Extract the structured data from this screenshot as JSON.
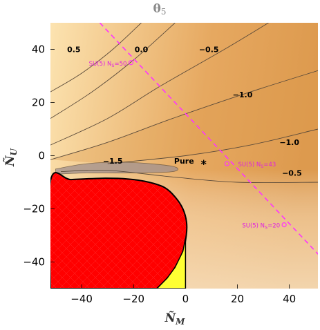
{
  "chart_data": {
    "type": "contour",
    "title_main": "θ",
    "title_sub": "5",
    "xlabel_main": "Ñ",
    "xlabel_sub": "M",
    "ylabel_main": "Ñ",
    "ylabel_sub": "U",
    "xlim": [
      -52,
      51
    ],
    "ylim": [
      -50,
      50
    ],
    "xticks": [
      -40,
      -20,
      0,
      20,
      40
    ],
    "yticks": [
      -40,
      -20,
      0,
      20,
      40
    ],
    "xtick_labels": [
      "−40",
      "−20",
      "0",
      "20",
      "40"
    ],
    "ytick_labels": [
      "−40",
      "−20",
      "0",
      "20",
      "40"
    ],
    "grid": false,
    "colors": {
      "fill_light": "#fce3b0",
      "fill_dark": "#dd9a4e",
      "contour_line": "#5a4a3a",
      "excluded_red": "#ff0000",
      "yellow_region": "#ffff33",
      "su5_line": "#ff33ff",
      "purple_band": "#a0908f"
    },
    "contours": [
      {
        "level_label": "0.5",
        "points": [
          [
            -52,
            24
          ],
          [
            -40,
            31
          ],
          [
            -28,
            40
          ],
          [
            -17,
            50
          ]
        ]
      },
      {
        "level_label": "0.0",
        "points": [
          [
            -52,
            14
          ],
          [
            -36,
            24
          ],
          [
            -20,
            36
          ],
          [
            -4,
            50
          ]
        ]
      },
      {
        "level_label": "−0.5",
        "points": [
          [
            -52,
            4
          ],
          [
            -30,
            14
          ],
          [
            -10,
            26
          ],
          [
            15,
            40
          ],
          [
            32,
            50
          ]
        ]
      },
      {
        "level_label": "−1.0",
        "points": [
          [
            -52,
            -1.5
          ],
          [
            -30,
            5
          ],
          [
            -5,
            14
          ],
          [
            25,
            24
          ],
          [
            51,
            32
          ]
        ]
      },
      {
        "level_label": "−1.0",
        "points": [
          [
            -30,
            -3
          ],
          [
            0,
            0
          ],
          [
            25,
            4
          ],
          [
            51,
            10
          ]
        ]
      },
      {
        "level_label": "−0.5",
        "points": [
          [
            -48,
            -6
          ],
          [
            -30,
            -5.5
          ],
          [
            -5,
            -8
          ],
          [
            20,
            -10
          ],
          [
            51,
            -10
          ]
        ]
      }
    ],
    "contour_labels": [
      {
        "text": "0.5",
        "x": -43,
        "y": 39
      },
      {
        "text": "0.0",
        "x": -17,
        "y": 39
      },
      {
        "text": "−0.5",
        "x": 9,
        "y": 39
      },
      {
        "text": "−1.0",
        "x": 22,
        "y": 22
      },
      {
        "text": "−1.0",
        "x": 40,
        "y": 4
      },
      {
        "text": "−1.5",
        "x": -28,
        "y": -3
      },
      {
        "text": "−0.5",
        "x": 41,
        "y": -7.5
      }
    ],
    "pure_band": {
      "label": "−1.5",
      "points": [
        [
          -50,
          -5
        ],
        [
          -38,
          -3
        ],
        [
          -22,
          -2.5
        ],
        [
          -5,
          -4
        ],
        [
          -5,
          -6
        ],
        [
          -22,
          -6.5
        ],
        [
          -38,
          -6.5
        ],
        [
          -50,
          -7
        ]
      ]
    },
    "excluded_region": {
      "points": [
        [
          -52,
          -50
        ],
        [
          -52,
          -9.5
        ],
        [
          -44,
          -9
        ],
        [
          -32,
          -8.5
        ],
        [
          -22,
          -8.8
        ],
        [
          -14,
          -10
        ],
        [
          -8,
          -12
        ],
        [
          -4,
          -15.5
        ],
        [
          -1,
          -20
        ],
        [
          0.4,
          -25
        ],
        [
          0.3,
          -30
        ],
        [
          -1,
          -36
        ],
        [
          -4,
          -42
        ],
        [
          -7,
          -46
        ],
        [
          -11,
          -50
        ]
      ]
    },
    "yellow_region": {
      "points": [
        [
          -7,
          -46
        ],
        [
          -4,
          -42
        ],
        [
          -1,
          -36
        ],
        [
          0,
          -31
        ],
        [
          0,
          -50
        ],
        [
          -11,
          -50
        ]
      ]
    },
    "su5_line": {
      "points": [
        [
          -33,
          50
        ],
        [
          52,
          -38
        ]
      ]
    },
    "su5_points": [
      {
        "label": "SU(5) N",
        "sub": "S",
        "value": "=50",
        "x": -21,
        "y": 35
      },
      {
        "label": "SU(5) N",
        "sub": "S",
        "value": "=43",
        "x": 16,
        "y": -3
      },
      {
        "label": "SU(5) N",
        "sub": "S",
        "value": "=20",
        "x": 38,
        "y": -26
      }
    ],
    "pure_marker": {
      "label": "Pure",
      "x": 7,
      "y": -3
    }
  }
}
